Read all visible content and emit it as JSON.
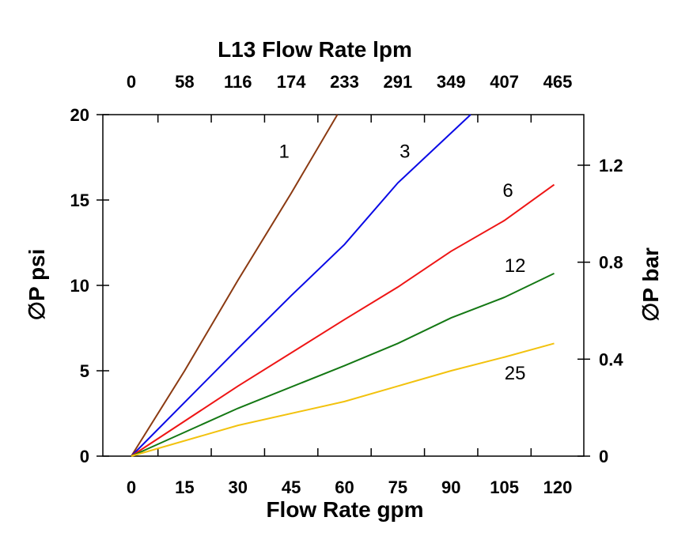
{
  "chart_data": {
    "type": "line",
    "title": "L13  Flow Rate lpm",
    "xlabel": "Flow Rate gpm",
    "ylabel": "∅P psi",
    "y2label": "∅P bar",
    "xlim": [
      0,
      120
    ],
    "ylim": [
      0,
      20
    ],
    "y2lim": [
      0,
      1.379
    ],
    "grid": false,
    "x_ticks": [
      "0",
      "15",
      "30",
      "45",
      "60",
      "75",
      "90",
      "105",
      "120"
    ],
    "x_top_ticks": [
      "0",
      "58",
      "116",
      "174",
      "233",
      "291",
      "349",
      "407",
      "465"
    ],
    "y_ticks": [
      "0",
      "5",
      "10",
      "15",
      "20"
    ],
    "y2_ticks": [
      "0",
      "0.4",
      "0.8",
      "1.2"
    ],
    "series": [
      {
        "name": "1",
        "color": "#8B3A12",
        "points": [
          [
            0,
            0
          ],
          [
            15,
            5.0
          ],
          [
            30,
            10.3
          ],
          [
            45,
            15.4
          ],
          [
            58,
            20
          ]
        ],
        "label_at": [
          43,
          17.9
        ]
      },
      {
        "name": "3",
        "color": "#0A0AE6",
        "points": [
          [
            0,
            0
          ],
          [
            30,
            6.3
          ],
          [
            45,
            9.4
          ],
          [
            60,
            12.4
          ],
          [
            75,
            16.0
          ],
          [
            95.5,
            20
          ]
        ],
        "label_at": [
          77,
          17.9
        ]
      },
      {
        "name": "6",
        "color": "#EE1515",
        "points": [
          [
            0,
            0
          ],
          [
            30,
            4.1
          ],
          [
            60,
            8.0
          ],
          [
            75,
            9.9
          ],
          [
            90,
            12.0
          ],
          [
            105,
            13.8
          ],
          [
            119,
            15.9
          ]
        ],
        "label_at": [
          106,
          15.6
        ]
      },
      {
        "name": "12",
        "color": "#147814",
        "points": [
          [
            0,
            0
          ],
          [
            30,
            2.8
          ],
          [
            60,
            5.3
          ],
          [
            75,
            6.6
          ],
          [
            90,
            8.1
          ],
          [
            105,
            9.3
          ],
          [
            119,
            10.7
          ]
        ],
        "label_at": [
          108,
          11.2
        ]
      },
      {
        "name": "25",
        "color": "#F2C20E",
        "points": [
          [
            0,
            0
          ],
          [
            30,
            1.8
          ],
          [
            60,
            3.2
          ],
          [
            75,
            4.1
          ],
          [
            90,
            5.0
          ],
          [
            105,
            5.8
          ],
          [
            119,
            6.6
          ]
        ],
        "label_at": [
          108,
          4.9
        ]
      }
    ]
  }
}
